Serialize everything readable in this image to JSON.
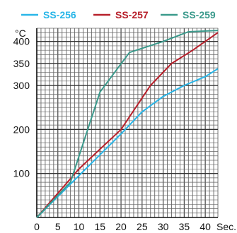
{
  "chart_data": {
    "type": "line",
    "ylabel": "°C",
    "xlabel": "Sec.",
    "xlim": [
      0,
      43
    ],
    "ylim": [
      0,
      430
    ],
    "x_ticks": [
      0,
      5,
      10,
      15,
      20,
      25,
      30,
      35,
      40
    ],
    "y_ticks": [
      100,
      200,
      300,
      350,
      400
    ],
    "grid": true,
    "legend_position": "top",
    "series": [
      {
        "name": "SS-256",
        "color": "#29b6e8",
        "points": [
          [
            0,
            0
          ],
          [
            10,
            95
          ],
          [
            20,
            190
          ],
          [
            25,
            240
          ],
          [
            30,
            275
          ],
          [
            35,
            300
          ],
          [
            40,
            320
          ],
          [
            43,
            338
          ]
        ]
      },
      {
        "name": "SS-257",
        "color": "#b7202b",
        "points": [
          [
            0,
            0
          ],
          [
            10,
            110
          ],
          [
            20,
            200
          ],
          [
            27,
            300
          ],
          [
            32,
            350
          ],
          [
            37,
            380
          ],
          [
            40,
            400
          ],
          [
            43,
            420
          ]
        ]
      },
      {
        "name": "SS-259",
        "color": "#3b9a8c",
        "points": [
          [
            0,
            0
          ],
          [
            8,
            80
          ],
          [
            15,
            285
          ],
          [
            22,
            375
          ],
          [
            30,
            400
          ],
          [
            36,
            422
          ],
          [
            43,
            425
          ]
        ]
      }
    ]
  }
}
